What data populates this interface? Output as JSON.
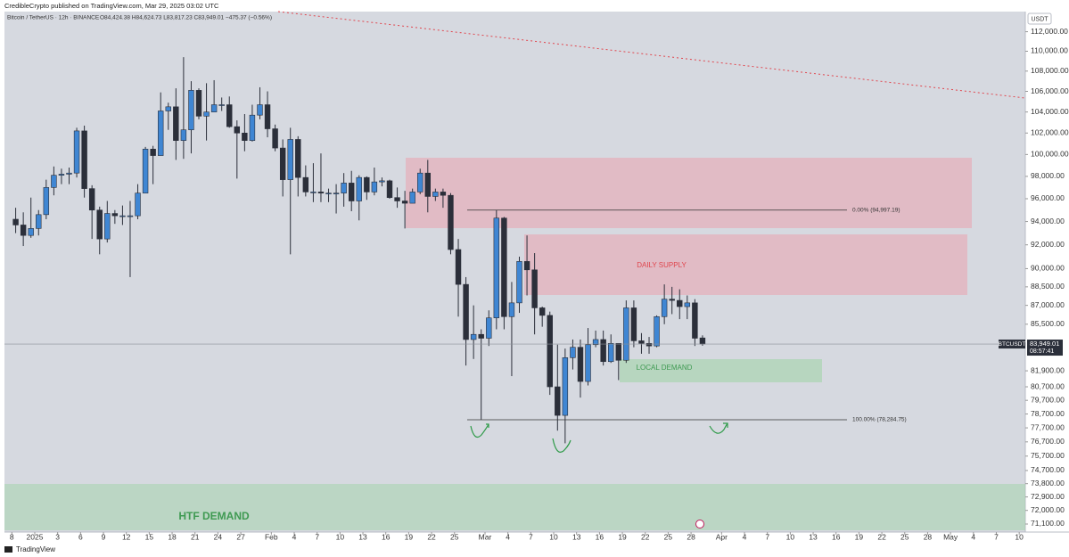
{
  "chart_data": {
    "type": "candlestick",
    "published": "CredibleCrypto published on TradingView.com, Mar 29, 2025 03:02 UTC",
    "legend": "Bitcoin / TetherUS · 12h · BINANCE",
    "ohlc_text": "O84,424.38 H84,624.73 L83,817.23 C83,949.01 −475.37 (−0.56%)",
    "currency": "USDT",
    "brand": "TradingView",
    "annotations": {
      "daily_supply": "DAILY SUPPLY",
      "local_demand": "LOCAL DEMAND",
      "htf_demand": "HTF DEMAND"
    },
    "fib_levels": [
      {
        "value": 94997.19,
        "label": "0.00% (94,997.19)"
      },
      {
        "value": 78284.75,
        "label": "100.00% (78,284.75)"
      }
    ],
    "last_price": {
      "value": 83949.01,
      "label": "83,949.01"
    },
    "symbol_tag": "BTCUSDT",
    "countdown": "08:57:41",
    "up_color": "#3f86d3",
    "down_color": "#2b2f3a",
    "log_scale": true,
    "ylim": [
      70575,
      114100
    ],
    "xlim": [
      -3.97,
      129.8
    ],
    "yticks": [
      {
        "value": 112000,
        "label": "112,000.00"
      },
      {
        "value": 110000,
        "label": "110,000.00"
      },
      {
        "value": 108000,
        "label": "108,000.00"
      },
      {
        "value": 106000,
        "label": "106,000.00"
      },
      {
        "value": 104000,
        "label": "104,000.00"
      },
      {
        "value": 102000,
        "label": "102,000.00"
      },
      {
        "value": 100000,
        "label": "100,000.00"
      },
      {
        "value": 98000,
        "label": "98,000.00"
      },
      {
        "value": 96000,
        "label": "96,000.00"
      },
      {
        "value": 94000,
        "label": "94,000.00"
      },
      {
        "value": 92000,
        "label": "92,000.00"
      },
      {
        "value": 90000,
        "label": "90,000.00"
      },
      {
        "value": 88500,
        "label": "88,500.00"
      },
      {
        "value": 87000,
        "label": "87,000.00"
      },
      {
        "value": 85500,
        "label": "85,500.00"
      },
      {
        "value": 81900,
        "label": "81,900.00"
      },
      {
        "value": 80700,
        "label": "80,700.00"
      },
      {
        "value": 79700,
        "label": "79,700.00"
      },
      {
        "value": 78700,
        "label": "78,700.00"
      },
      {
        "value": 77700,
        "label": "77,700.00"
      },
      {
        "value": 76700,
        "label": "76,700.00"
      },
      {
        "value": 75700,
        "label": "75,700.00"
      },
      {
        "value": 74700,
        "label": "74,700.00"
      },
      {
        "value": 73800,
        "label": "73,800.00"
      },
      {
        "value": 72900,
        "label": "72,900.00"
      },
      {
        "value": 72000,
        "label": "72,000.00"
      },
      {
        "value": 71100,
        "label": "71,100.00"
      }
    ],
    "xticks": [
      {
        "value": -3,
        "label": "8"
      },
      {
        "value": 0,
        "label": "2025"
      },
      3,
      6,
      9,
      12,
      15,
      18,
      21,
      24,
      27,
      {
        "value": 31,
        "label": "Feb"
      },
      {
        "value": 34,
        "label": "4"
      },
      {
        "value": 37,
        "label": "7"
      },
      {
        "value": 40,
        "label": "10"
      },
      {
        "value": 43,
        "label": "13"
      },
      {
        "value": 46,
        "label": "16"
      },
      {
        "value": 49,
        "label": "19"
      },
      {
        "value": 52,
        "label": "22"
      },
      {
        "value": 55,
        "label": "25"
      },
      {
        "value": 59,
        "label": "Mar"
      },
      {
        "value": 62,
        "label": "4"
      },
      {
        "value": 65,
        "label": "7"
      },
      {
        "value": 68,
        "label": "10"
      },
      {
        "value": 71,
        "label": "13"
      },
      {
        "value": 74,
        "label": "16"
      },
      {
        "value": 77,
        "label": "19"
      },
      {
        "value": 80,
        "label": "22"
      },
      {
        "value": 83,
        "label": "25"
      },
      {
        "value": 86,
        "label": "28"
      },
      {
        "value": 90,
        "label": "Apr"
      },
      {
        "value": 93,
        "label": "4"
      },
      {
        "value": 96,
        "label": "7"
      },
      {
        "value": 99,
        "label": "10"
      },
      {
        "value": 102,
        "label": "13"
      },
      {
        "value": 105,
        "label": "16"
      },
      {
        "value": 108,
        "label": "19"
      },
      {
        "value": 111,
        "label": "22"
      },
      {
        "value": 114,
        "label": "25"
      },
      {
        "value": 117,
        "label": "28"
      },
      {
        "value": 120,
        "label": "May"
      },
      {
        "value": 123,
        "label": "4"
      },
      {
        "value": 126,
        "label": "7"
      },
      {
        "value": 129,
        "label": "10"
      }
    ],
    "x": [
      -2.5,
      -1.5,
      -0.5,
      0.5,
      1.5,
      2.5,
      3.5,
      4.5,
      5.5,
      6.5,
      7.5,
      8.5,
      9.5,
      10.5,
      11.5,
      12.5,
      13.5,
      14.5,
      15.5,
      16.5,
      17.5,
      18.5,
      19.5,
      20.5,
      21.5,
      22.5,
      23.5,
      24.5,
      25.5,
      26.5,
      27.5,
      28.5,
      29.5,
      30.5,
      31.5,
      32.5,
      33.5,
      34.5,
      35.5,
      36.5,
      37.5,
      38.5,
      39.5,
      40.5,
      41.5,
      42.5,
      43.5,
      44.5,
      45.5,
      46.5,
      47.5,
      48.5,
      49.5,
      50.5,
      51.5,
      52.5,
      53.5,
      54.5,
      55.5,
      56.5,
      57.5,
      58.5,
      59.5,
      60.5,
      61.5,
      62.5,
      63.5,
      64.5,
      65.5,
      66.5,
      67.5,
      68.5,
      69.5,
      70.5,
      71.5,
      72.5,
      73.5,
      74.5,
      75.5,
      76.5,
      77.5,
      78.5,
      79.5,
      80.5,
      81.5,
      82.5,
      83.5,
      84.5,
      85.5,
      86.5,
      87.5
    ],
    "candles": [
      [
        94200,
        95200,
        93000,
        93700
      ],
      [
        93700,
        94800,
        91900,
        92800
      ],
      [
        92800,
        96100,
        92600,
        93400
      ],
      [
        93400,
        95000,
        92800,
        94600
      ],
      [
        94600,
        97700,
        94200,
        97000
      ],
      [
        97000,
        98900,
        96300,
        98100
      ],
      [
        98100,
        98700,
        97300,
        98200
      ],
      [
        98200,
        98800,
        97300,
        98300
      ],
      [
        98300,
        102500,
        97900,
        102200
      ],
      [
        102200,
        102700,
        96100,
        96900
      ],
      [
        96900,
        97200,
        92500,
        95000
      ],
      [
        95000,
        95300,
        91200,
        92500
      ],
      [
        92500,
        95800,
        92200,
        94700
      ],
      [
        94700,
        95000,
        93800,
        94500
      ],
      [
        94500,
        95400,
        93700,
        94500
      ],
      [
        94500,
        95800,
        89300,
        94500
      ],
      [
        94500,
        97300,
        94200,
        96500
      ],
      [
        96500,
        100700,
        96500,
        100500
      ],
      [
        100500,
        100800,
        97300,
        99900
      ],
      [
        99900,
        105900,
        99900,
        104100
      ],
      [
        104100,
        104900,
        102300,
        104500
      ],
      [
        104500,
        106300,
        99500,
        101300
      ],
      [
        101300,
        109400,
        99600,
        102300
      ],
      [
        102300,
        107000,
        100100,
        106100
      ],
      [
        106100,
        106300,
        103300,
        103600
      ],
      [
        103600,
        106800,
        101300,
        104000
      ],
      [
        104000,
        107100,
        104000,
        104700
      ],
      [
        104700,
        105400,
        104100,
        104700
      ],
      [
        104700,
        105500,
        102500,
        102600
      ],
      [
        102600,
        103200,
        97800,
        102000
      ],
      [
        102000,
        103800,
        100300,
        101300
      ],
      [
        101300,
        104700,
        101200,
        103700
      ],
      [
        103700,
        106400,
        103300,
        104700
      ],
      [
        104700,
        106000,
        101600,
        102400
      ],
      [
        102400,
        102800,
        100300,
        100600
      ],
      [
        100600,
        101400,
        96200,
        97700
      ],
      [
        97700,
        102500,
        91200,
        101400
      ],
      [
        101400,
        101700,
        96200,
        97900
      ],
      [
        97900,
        99000,
        96200,
        96600
      ],
      [
        96600,
        99200,
        95700,
        96600
      ],
      [
        96600,
        100100,
        95700,
        96500
      ],
      [
        96500,
        96900,
        95700,
        96500
      ],
      [
        96500,
        97300,
        94700,
        96500
      ],
      [
        96500,
        98300,
        95300,
        97400
      ],
      [
        97400,
        98500,
        94900,
        95800
      ],
      [
        95800,
        98100,
        94100,
        97900
      ],
      [
        97900,
        98000,
        95900,
        96600
      ],
      [
        96600,
        98800,
        96300,
        97500
      ],
      [
        97500,
        97900,
        97100,
        97600
      ],
      [
        97600,
        97700,
        96000,
        96100
      ],
      [
        96100,
        97000,
        95200,
        95800
      ],
      [
        95800,
        96700,
        93400,
        95600
      ],
      [
        95600,
        96900,
        95600,
        96600
      ],
      [
        96600,
        98700,
        96400,
        98300
      ],
      [
        98300,
        99500,
        94800,
        96200
      ],
      [
        96200,
        96900,
        95800,
        96600
      ],
      [
        96600,
        96900,
        95200,
        96300
      ],
      [
        96300,
        96500,
        91200,
        91600
      ],
      [
        91600,
        92500,
        86100,
        88700
      ],
      [
        88700,
        89300,
        82300,
        84300
      ],
      [
        84300,
        87000,
        82800,
        84700
      ],
      [
        84700,
        85100,
        78300,
        84400
      ],
      [
        84400,
        86600,
        83800,
        86000
      ],
      [
        86000,
        95000,
        85100,
        94300
      ],
      [
        94300,
        94400,
        85100,
        86100
      ],
      [
        86100,
        88900,
        81500,
        87200
      ],
      [
        87200,
        91000,
        86400,
        90600
      ],
      [
        90600,
        92800,
        87800,
        89900
      ],
      [
        89900,
        91300,
        84700,
        86800
      ],
      [
        86800,
        86900,
        85300,
        86200
      ],
      [
        86200,
        86500,
        80100,
        80700
      ],
      [
        80700,
        83900,
        77500,
        78600
      ],
      [
        78600,
        83600,
        76600,
        82900
      ],
      [
        82900,
        84300,
        82000,
        83700
      ],
      [
        83700,
        84300,
        79900,
        81100
      ],
      [
        81100,
        85200,
        80800,
        83900
      ],
      [
        83900,
        85000,
        83700,
        84300
      ],
      [
        84300,
        85000,
        82300,
        82600
      ],
      [
        82600,
        84700,
        82500,
        84000
      ],
      [
        84000,
        84000,
        81200,
        82700
      ],
      [
        82700,
        87400,
        82500,
        86800
      ],
      [
        86800,
        87400,
        83700,
        84200
      ],
      [
        84200,
        84800,
        83200,
        84000
      ],
      [
        84000,
        84500,
        83200,
        83800
      ],
      [
        83800,
        86200,
        83700,
        86100
      ],
      [
        86100,
        88700,
        85500,
        87500
      ],
      [
        87500,
        88500,
        86300,
        87400
      ],
      [
        87400,
        88300,
        85900,
        86900
      ],
      [
        86900,
        87800,
        85900,
        87200
      ],
      [
        87200,
        87500,
        83800,
        84400
      ],
      [
        84424.38,
        84624.73,
        83817.23,
        83949.01
      ]
    ]
  }
}
